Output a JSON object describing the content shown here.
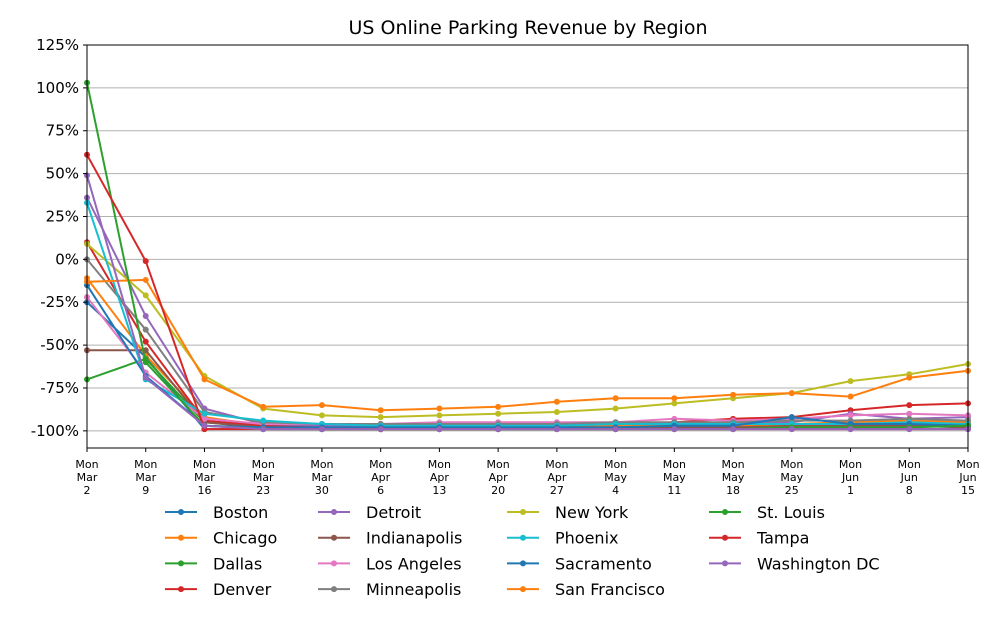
{
  "chart_data": {
    "type": "line",
    "title": "US Online Parking Revenue by Region",
    "xlabel": "",
    "ylabel": "",
    "ylim": [
      -110,
      125
    ],
    "yticks": [
      {
        "value": 125,
        "label": "125%"
      },
      {
        "value": 100,
        "label": "100%"
      },
      {
        "value": 75,
        "label": "75%"
      },
      {
        "value": 50,
        "label": "50%"
      },
      {
        "value": 25,
        "label": "25%"
      },
      {
        "value": 0,
        "label": "0%"
      },
      {
        "value": -25,
        "label": "-25%"
      },
      {
        "value": -50,
        "label": "-50%"
      },
      {
        "value": -75,
        "label": "-75%"
      },
      {
        "value": -100,
        "label": "-100%"
      }
    ],
    "grid": "horizontal",
    "legend_position": "bottom",
    "x": [
      [
        "Mon",
        "Mar",
        "2"
      ],
      [
        "Mon",
        "Mar",
        "9"
      ],
      [
        "Mon",
        "Mar",
        "16"
      ],
      [
        "Mon",
        "Mar",
        "23"
      ],
      [
        "Mon",
        "Mar",
        "30"
      ],
      [
        "Mon",
        "Apr",
        "6"
      ],
      [
        "Mon",
        "Apr",
        "13"
      ],
      [
        "Mon",
        "Apr",
        "20"
      ],
      [
        "Mon",
        "Apr",
        "27"
      ],
      [
        "Mon",
        "May",
        "4"
      ],
      [
        "Mon",
        "May",
        "11"
      ],
      [
        "Mon",
        "May",
        "18"
      ],
      [
        "Mon",
        "May",
        "25"
      ],
      [
        "Mon",
        "Jun",
        "1"
      ],
      [
        "Mon",
        "Jun",
        "8"
      ],
      [
        "Mon",
        "Jun",
        "15"
      ]
    ],
    "series": [
      {
        "name": "Boston",
        "color": "#1f77b4",
        "values": [
          -25,
          -57,
          -99,
          -99,
          -99,
          -99,
          -99,
          -99,
          -99,
          -99,
          -98,
          -98,
          -98,
          -98,
          -97,
          -98
        ]
      },
      {
        "name": "Chicago",
        "color": "#ff7f0e",
        "values": [
          -11,
          -56,
          -92,
          -97,
          -97,
          -98,
          -97,
          -97,
          -97,
          -97,
          -97,
          -97,
          -96,
          -95,
          -94,
          -95
        ]
      },
      {
        "name": "Dallas",
        "color": "#2ca02c",
        "values": [
          -70,
          -58,
          -95,
          -98,
          -99,
          -99,
          -99,
          -99,
          -99,
          -99,
          -99,
          -99,
          -98,
          -97,
          -96,
          -97
        ]
      },
      {
        "name": "Denver",
        "color": "#d62728",
        "values": [
          10,
          -48,
          -94,
          -97,
          -98,
          -99,
          -98,
          -97,
          -97,
          -96,
          -95,
          -93,
          -92,
          -88,
          -85,
          -84
        ]
      },
      {
        "name": "Detroit",
        "color": "#9467bd",
        "values": [
          36,
          -33,
          -87,
          -96,
          -97,
          -97,
          -97,
          -97,
          -96,
          -96,
          -96,
          -96,
          -95,
          -90,
          -93,
          -92
        ]
      },
      {
        "name": "Indianapolis",
        "color": "#8c564b",
        "values": [
          -53,
          -53,
          -95,
          -98,
          -99,
          -99,
          -99,
          -99,
          -98,
          -98,
          -98,
          -98,
          -97,
          -97,
          -97,
          -98
        ]
      },
      {
        "name": "Los Angeles",
        "color": "#e377c2",
        "values": [
          -22,
          -66,
          -93,
          -96,
          -96,
          -96,
          -95,
          -95,
          -95,
          -95,
          -93,
          -94,
          -93,
          -91,
          -90,
          -91
        ]
      },
      {
        "name": "Minneapolis",
        "color": "#7f7f7f",
        "values": [
          0,
          -41,
          -89,
          -95,
          -96,
          -96,
          -96,
          -96,
          -96,
          -95,
          -95,
          -95,
          -94,
          -94,
          -93,
          -94
        ]
      },
      {
        "name": "New York",
        "color": "#bcbd22",
        "values": [
          9,
          -21,
          -68,
          -87,
          -91,
          -92,
          -91,
          -90,
          -89,
          -87,
          -84,
          -81,
          -78,
          -71,
          -67,
          -61
        ]
      },
      {
        "name": "Phoenix",
        "color": "#17becf",
        "values": [
          33,
          -70,
          -90,
          -94,
          -96,
          -97,
          -97,
          -97,
          -97,
          -96,
          -96,
          -96,
          -96,
          -96,
          -95,
          -96
        ]
      },
      {
        "name": "Sacramento",
        "color": "#1f77b4",
        "values": [
          -15,
          -68,
          -97,
          -98,
          -98,
          -98,
          -98,
          -98,
          -98,
          -98,
          -97,
          -97,
          -92,
          -96,
          -96,
          -97
        ]
      },
      {
        "name": "San Francisco",
        "color": "#ff7f0e",
        "values": [
          -13,
          -12,
          -70,
          -86,
          -85,
          -88,
          -87,
          -86,
          -83,
          -81,
          -81,
          -79,
          -78,
          -80,
          -69,
          -65
        ]
      },
      {
        "name": "St. Louis",
        "color": "#2ca02c",
        "values": [
          103,
          -60,
          -97,
          -99,
          -99,
          -99,
          -99,
          -99,
          -99,
          -99,
          -99,
          -99,
          -98,
          -98,
          -98,
          -97
        ]
      },
      {
        "name": "Tampa",
        "color": "#d62728",
        "values": [
          61,
          -1,
          -99,
          -99,
          -99,
          -99,
          -99,
          -99,
          -99,
          -99,
          -99,
          -99,
          -99,
          -99,
          -99,
          -99
        ]
      },
      {
        "name": "Washington DC",
        "color": "#9467bd",
        "values": [
          49,
          -69,
          -97,
          -99,
          -99,
          -99,
          -99,
          -99,
          -99,
          -99,
          -99,
          -99,
          -99,
          -99,
          -99,
          -99
        ]
      }
    ]
  }
}
